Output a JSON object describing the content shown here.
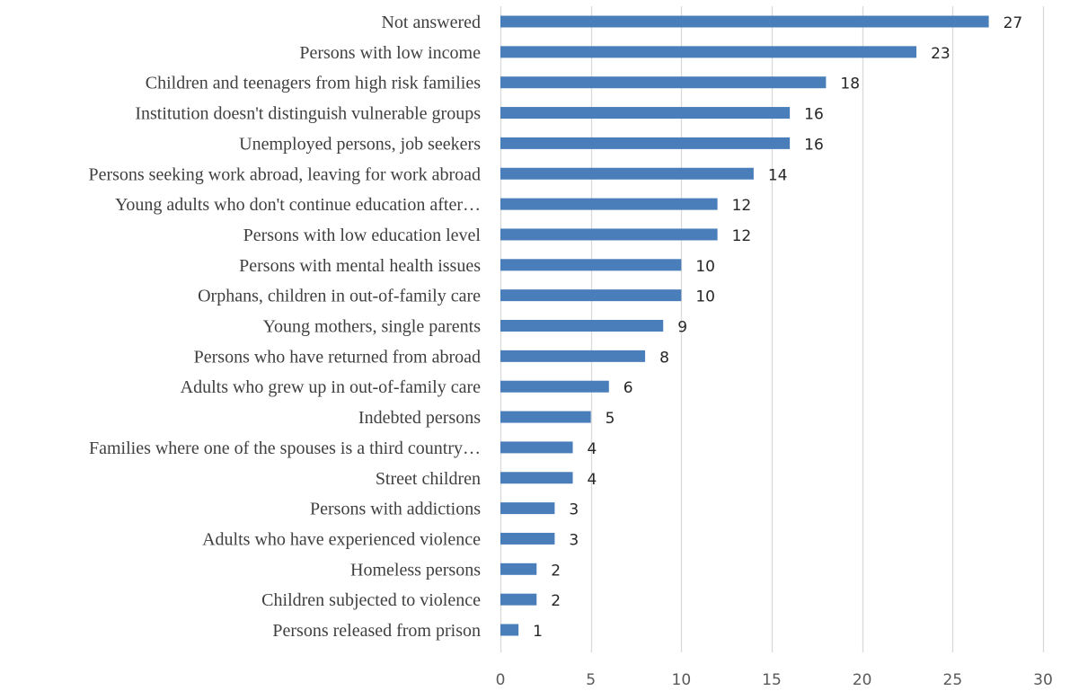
{
  "chart_data": {
    "type": "bar",
    "orientation": "horizontal",
    "title": "",
    "xlabel": "",
    "ylabel": "",
    "xlim": [
      0,
      30
    ],
    "xticks": [
      0,
      5,
      10,
      15,
      20,
      25,
      30
    ],
    "grid": true,
    "legend": "none",
    "bar_color": "#4a7ebb",
    "grid_color": "#d9d9d9",
    "categories": [
      "Not answered",
      "Persons with low income",
      "Children and teenagers from high risk families",
      "Institution doesn't distinguish vulnerable groups",
      "Unemployed persons, job seekers",
      "Persons seeking work abroad, leaving for work abroad",
      "Young adults who don't continue education after…",
      "Persons with low education level",
      "Persons with mental health issues",
      "Orphans, children in out-of-family care",
      "Young mothers, single parents",
      "Persons who have returned from abroad",
      "Adults who grew up in out-of-family care",
      "Indebted persons",
      "Families where one of the spouses is a third country…",
      "Street children",
      "Persons with addictions",
      "Adults who have experienced violence",
      "Homeless persons",
      "Children subjected to violence",
      "Persons released from prison"
    ],
    "values": [
      27,
      23,
      18,
      16,
      16,
      14,
      12,
      12,
      10,
      10,
      9,
      8,
      6,
      5,
      4,
      4,
      3,
      3,
      2,
      2,
      1
    ]
  }
}
